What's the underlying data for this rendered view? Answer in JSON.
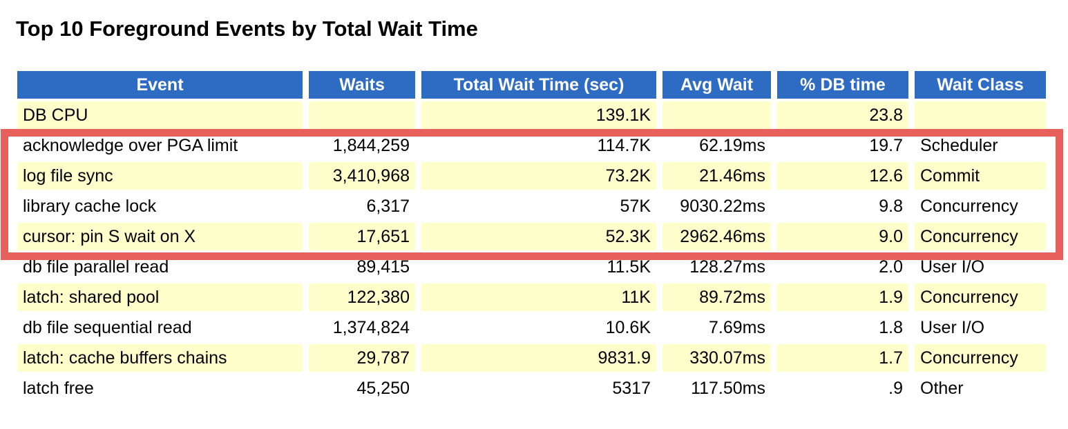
{
  "title": "Top 10 Foreground Events by Total Wait Time",
  "colors": {
    "header_bg": "#2e6cc3",
    "header_text": "#ffffff",
    "row_stripe_bg": "#ffffcc",
    "row_plain_bg": "#ffffff",
    "cell_text": "#000000",
    "highlight_border": "#e7605c"
  },
  "table": {
    "columns": [
      {
        "key": "event",
        "label": "Event",
        "align": "left"
      },
      {
        "key": "waits",
        "label": "Waits",
        "align": "right"
      },
      {
        "key": "total_wait_time_sec",
        "label": "Total Wait Time (sec)",
        "align": "right"
      },
      {
        "key": "avg_wait",
        "label": "Avg Wait",
        "align": "right"
      },
      {
        "key": "pct_db_time",
        "label": "% DB time",
        "align": "right"
      },
      {
        "key": "wait_class",
        "label": "Wait Class",
        "align": "left"
      }
    ],
    "rows": [
      [
        "DB CPU",
        "",
        "139.1K",
        "",
        "23.8",
        ""
      ],
      [
        "acknowledge over PGA limit",
        "1,844,259",
        "114.7K",
        "62.19ms",
        "19.7",
        "Scheduler"
      ],
      [
        "log file sync",
        "3,410,968",
        "73.2K",
        "21.46ms",
        "12.6",
        "Commit"
      ],
      [
        "library cache lock",
        "6,317",
        "57K",
        "9030.22ms",
        "9.8",
        "Concurrency"
      ],
      [
        "cursor: pin S wait on X",
        "17,651",
        "52.3K",
        "2962.46ms",
        "9.0",
        "Concurrency"
      ],
      [
        "db file parallel read",
        "89,415",
        "11.5K",
        "128.27ms",
        "2.0",
        "User I/O"
      ],
      [
        "latch: shared pool",
        "122,380",
        "11K",
        "89.72ms",
        "1.9",
        "Concurrency"
      ],
      [
        "db file sequential read",
        "1,374,824",
        "10.6K",
        "7.69ms",
        "1.8",
        "User I/O"
      ],
      [
        "latch: cache buffers chains",
        "29,787",
        "9831.9",
        "330.07ms",
        "1.7",
        "Concurrency"
      ],
      [
        "latch free",
        "45,250",
        "5317",
        "117.50ms",
        ".9",
        "Other"
      ]
    ]
  },
  "annotation": {
    "type": "highlight-box",
    "color": "#e7605c",
    "highlighted_rows": [
      "acknowledge over PGA limit",
      "log file sync",
      "library cache lock",
      "cursor: pin S wait on X"
    ]
  }
}
